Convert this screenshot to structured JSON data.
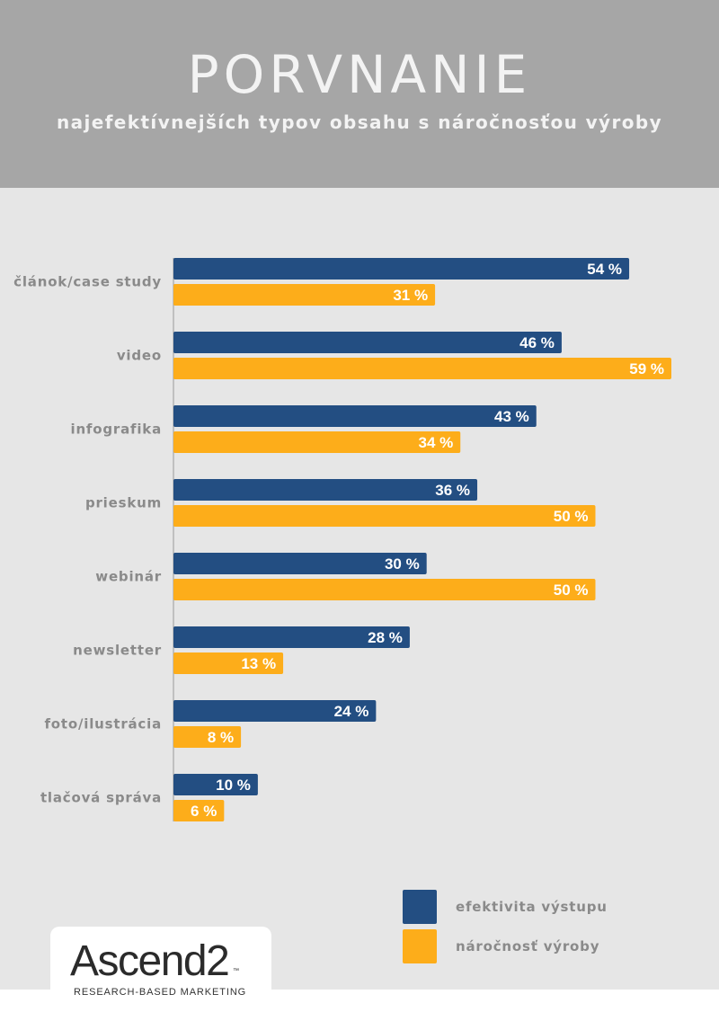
{
  "header": {
    "title": "PORVNANIE",
    "subtitle": "najefektívnejších typov obsahu s náročnosťou výroby"
  },
  "colors": {
    "header_bg": "#a6a6a6",
    "panel_bg": "#e6e6e6",
    "effectiveness": "#234e82",
    "difficulty": "#fdad1a",
    "label_gray": "#8a8a8a"
  },
  "chart_data": {
    "type": "bar",
    "orientation": "horizontal",
    "categories": [
      "článok/case study",
      "video",
      "infografika",
      "prieskum",
      "webinár",
      "newsletter",
      "foto/ilustrácia",
      "tlačová správa"
    ],
    "series": [
      {
        "name": "efektivita výstupu",
        "values": [
          54,
          46,
          43,
          36,
          30,
          28,
          24,
          10
        ],
        "color": "#234e82"
      },
      {
        "name": "náročnosť výroby",
        "values": [
          31,
          59,
          34,
          50,
          50,
          13,
          8,
          6
        ],
        "color": "#fdad1a"
      }
    ],
    "value_suffix": " %",
    "xlim": [
      0,
      59
    ],
    "grid": false,
    "legend_position": "bottom-right"
  },
  "legend": {
    "items": [
      {
        "label": "efektivita výstupu"
      },
      {
        "label": "náročnosť výroby"
      }
    ]
  },
  "logo": {
    "wordmark": "Ascend2",
    "trademark": "™",
    "tagline": "RESEARCH-BASED MARKETING"
  }
}
